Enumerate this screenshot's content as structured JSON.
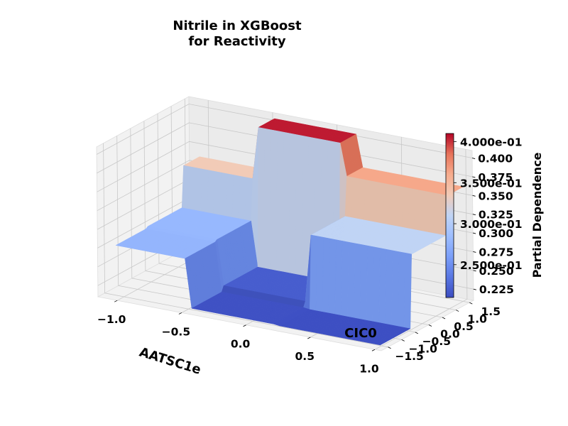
{
  "chart_data": {
    "type": "surface3d",
    "title_lines": [
      "Nitrile in XGBoost",
      "for Reactivity"
    ],
    "xlabel": "AATSC1e",
    "ylabel": "CIC0",
    "zlabel": "",
    "x_ticks": [
      "−1.0",
      "−0.5",
      "0.0",
      "0.5",
      "1.0"
    ],
    "y_ticks": [
      "−1.5",
      "−1.0",
      "−0.5",
      "0.0",
      "0.5",
      "1.0",
      "1.5"
    ],
    "z_ticks": [
      "0.225",
      "0.250",
      "0.275",
      "0.300",
      "0.325",
      "0.350",
      "0.375",
      "0.400"
    ],
    "xlim": [
      -1.15,
      1.05
    ],
    "ylim": [
      -1.75,
      1.65
    ],
    "zlim": [
      0.21,
      0.41
    ],
    "x_breaks": [
      -0.5,
      0.2
    ],
    "y_breaks": [
      -0.4,
      0.9
    ],
    "plateaus": {
      "x_low_y_low": 0.278,
      "x_low_y_mid": 0.28,
      "x_low_y_high": 0.335,
      "x_mid_y_low": 0.213,
      "x_mid_y_mid": 0.22,
      "x_mid_y_high": 0.405,
      "x_high_y_low": 0.212,
      "x_high_y_mid": 0.31,
      "x_high_y_high": 0.362
    },
    "colorbar": {
      "colormap": "coolwarm",
      "min": 0.21,
      "max": 0.41,
      "ticks": [
        {
          "value": 0.25,
          "label": "2.500e-01"
        },
        {
          "value": 0.3,
          "label": "3.000e-01"
        },
        {
          "value": 0.35,
          "label": "3.500e-01"
        },
        {
          "value": 0.4,
          "label": "4.000e-01"
        }
      ],
      "label": "Partial Dependence"
    },
    "grid": true
  }
}
